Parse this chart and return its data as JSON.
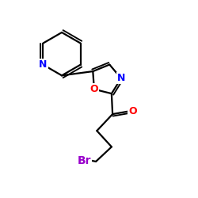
{
  "bg_color": "#ffffff",
  "atom_colors": {
    "N": "#0000ff",
    "O_oxazole": "#ff0000",
    "O_ketone": "#ff0000",
    "Br": "#9900cc",
    "C": "#000000"
  },
  "bond_color": "#000000",
  "bond_width": 1.6,
  "font_size_atoms": 9,
  "font_size_br": 10
}
